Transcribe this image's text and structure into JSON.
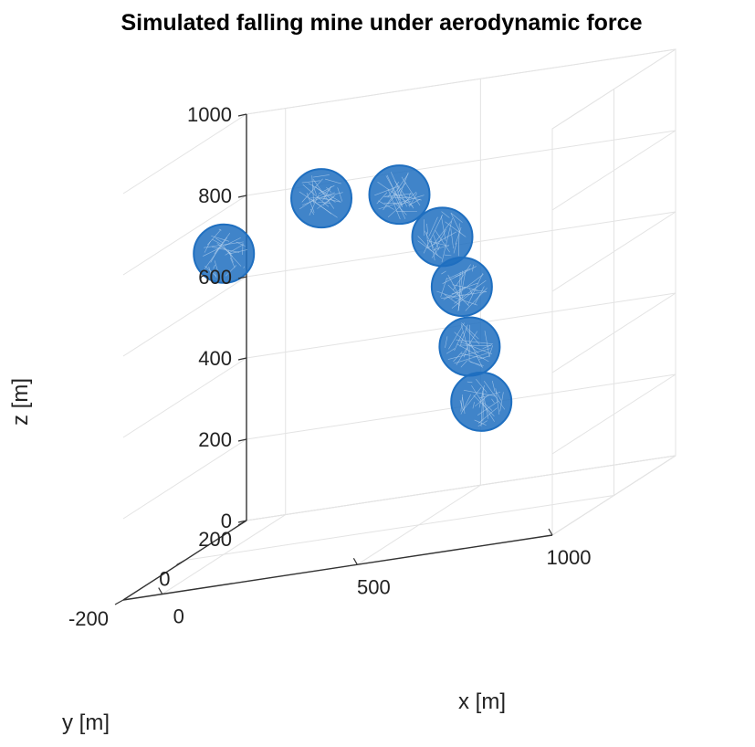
{
  "chart_data": {
    "type": "scatter",
    "title": "Simulated falling mine under aerodynamic force",
    "xlabel": "x [m]",
    "ylabel": "y [m]",
    "zlabel": "z [m]",
    "xlim": [
      -100,
      1000
    ],
    "ylim": [
      -200,
      200
    ],
    "zlim": [
      0,
      1000
    ],
    "x_ticks": [
      "0",
      "500",
      "1000"
    ],
    "y_ticks": [
      "-200",
      "0",
      "200"
    ],
    "z_ticks": [
      "0",
      "200",
      "400",
      "600",
      "800",
      "1000"
    ],
    "x_tick_values": [
      0,
      500,
      1000
    ],
    "y_tick_values": [
      -200,
      0,
      200
    ],
    "z_tick_values": [
      0,
      200,
      400,
      600,
      800,
      1000
    ],
    "grid": true,
    "marker_color": "#1f6fc0",
    "series": [
      {
        "values": [
          {
            "x": 0,
            "y": 0,
            "z": 740
          },
          {
            "x": 250,
            "y": 0,
            "z": 840
          },
          {
            "x": 450,
            "y": 0,
            "z": 820
          },
          {
            "x": 560,
            "y": 0,
            "z": 700
          },
          {
            "x": 610,
            "y": 0,
            "z": 570
          },
          {
            "x": 630,
            "y": 0,
            "z": 420
          },
          {
            "x": 660,
            "y": 0,
            "z": 280
          }
        ]
      }
    ]
  }
}
